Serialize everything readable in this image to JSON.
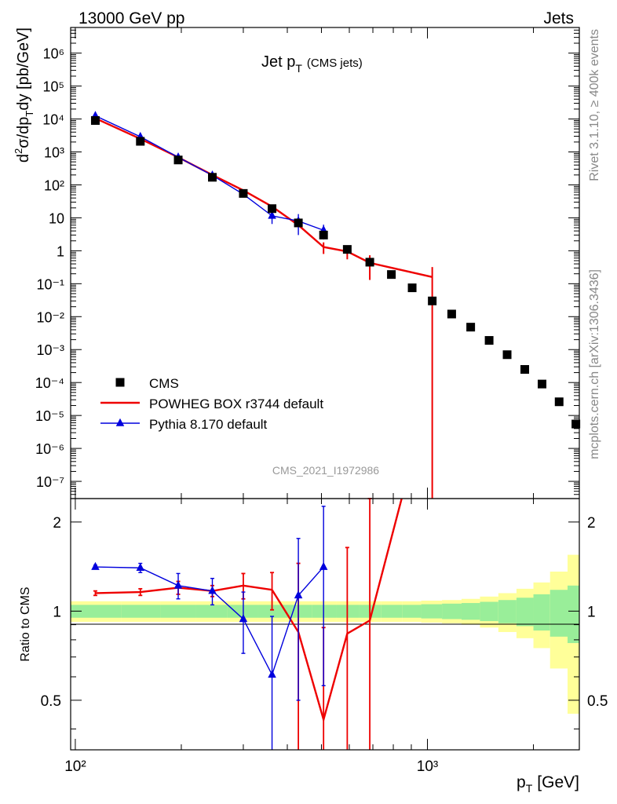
{
  "header": {
    "left": "13000 GeV pp",
    "right": "Jets"
  },
  "side_labels": {
    "rivet": "Rivet 3.1.10, ≥ 400k events",
    "mcplots": "mcplots.cern.ch [arXiv:1306.3436]"
  },
  "watermark": "CMS_2021_I1972986",
  "chart_data": [
    {
      "type": "scatter",
      "panel": "main",
      "title": "Jet p",
      "title_sub": "T",
      "title_suffix": "(CMS jets)",
      "ylabel": "d²σ/dp_T dy [pb/GeV]",
      "xlabel": "",
      "xscale": "log",
      "yscale": "log",
      "xlim": [
        97,
        2700
      ],
      "ylim": [
        3e-08,
        6000000.0
      ],
      "legend_position": "bottom-left",
      "x_tick_labels": [
        "10²",
        "10³"
      ],
      "y_tick_labels": [
        "10⁻⁷",
        "10⁻⁶",
        "10⁻⁵",
        "10⁻⁴",
        "10⁻³",
        "10⁻²",
        "10⁻¹",
        "1",
        "10",
        "10²",
        "10³",
        "10⁴",
        "10⁵",
        "10⁶"
      ],
      "series": [
        {
          "name": "CMS",
          "style": "marker-square",
          "color": "#000000",
          "x": [
            114,
            153,
            196,
            245,
            300,
            362,
            430,
            507,
            592,
            686,
            790,
            905,
            1032,
            1172,
            1327,
            1497,
            1684,
            1890,
            2116,
            2366,
            2640
          ],
          "y": [
            9000,
            2100,
            570,
            170,
            55,
            19,
            7,
            3,
            1.1,
            0.45,
            0.19,
            0.075,
            0.03,
            0.012,
            0.0048,
            0.0019,
            0.0007,
            0.00025,
            9e-05,
            2.6e-05,
            5.5e-06
          ]
        },
        {
          "name": "POWHEG BOX r3744 default",
          "style": "line",
          "color": "#ee0000",
          "x": [
            114,
            153,
            196,
            245,
            300,
            362,
            430,
            507,
            592,
            686,
            1032
          ],
          "y": [
            10500,
            2500,
            690,
            200,
            68,
            22,
            6,
            1.3,
            0.95,
            0.43,
            0.16
          ],
          "y_err": [
            0,
            0,
            0,
            0,
            0,
            0,
            0,
            0.5,
            0.4,
            0.3,
            0.16
          ]
        },
        {
          "name": "Pythia 8.170 default",
          "style": "line-triangle",
          "color": "#0000dd",
          "x": [
            114,
            153,
            196,
            245,
            300,
            362,
            430,
            507
          ],
          "y": [
            12500,
            2900,
            690,
            195,
            52,
            11.5,
            8,
            4.2
          ],
          "y_err": [
            0,
            0,
            0,
            0,
            0,
            5,
            5,
            2
          ]
        }
      ]
    },
    {
      "type": "line",
      "panel": "ratio",
      "ylabel": "Ratio to CMS",
      "xlabel": "p_T [GeV]",
      "xlabel_main": "p",
      "xlabel_sub": "T",
      "xlabel_unit": "[GeV]",
      "xscale": "log",
      "xlim": [
        97,
        2700
      ],
      "ylim": [
        0.34,
        2.4
      ],
      "y_tick_labels": [
        "0.5",
        "1",
        "2"
      ],
      "x_tick_labels": [
        "10²",
        "10³"
      ],
      "band_edges": [
        97,
        135,
        175,
        220,
        270,
        330,
        395,
        470,
        550,
        640,
        740,
        850,
        960,
        1100,
        1250,
        1410,
        1590,
        1790,
        2000,
        2230,
        2500,
        2700
      ],
      "band_inner": [
        0.05,
        0.05,
        0.05,
        0.05,
        0.05,
        0.05,
        0.05,
        0.05,
        0.05,
        0.05,
        0.05,
        0.05,
        0.055,
        0.06,
        0.065,
        0.075,
        0.09,
        0.11,
        0.14,
        0.18,
        0.22
      ],
      "band_outer": [
        0.08,
        0.08,
        0.08,
        0.08,
        0.08,
        0.08,
        0.08,
        0.08,
        0.08,
        0.08,
        0.08,
        0.08,
        0.085,
        0.09,
        0.1,
        0.12,
        0.15,
        0.19,
        0.25,
        0.36,
        0.55
      ],
      "series": [
        {
          "name": "POWHEG BOX r3744 default",
          "color": "#ee0000",
          "x": [
            114,
            153,
            196,
            245,
            300,
            362,
            430,
            507,
            592,
            686,
            845
          ],
          "y": [
            1.15,
            1.16,
            1.2,
            1.17,
            1.22,
            1.18,
            0.85,
            0.43,
            0.84,
            0.93,
            2.4
          ],
          "y_err": [
            0.02,
            0.03,
            0.06,
            0.05,
            0.12,
            0.17,
            0.6,
            0.45,
            0.8,
            1.7,
            0
          ]
        },
        {
          "name": "Pythia 8.170 default",
          "color": "#0000dd",
          "x": [
            114,
            153,
            196,
            245,
            300,
            362,
            430,
            507
          ],
          "y": [
            1.41,
            1.4,
            1.22,
            1.17,
            0.94,
            0.61,
            1.13,
            1.41
          ],
          "y_err": [
            0.02,
            0.05,
            0.12,
            0.12,
            0.22,
            0.35,
            0.63,
            0.85
          ]
        }
      ]
    }
  ]
}
